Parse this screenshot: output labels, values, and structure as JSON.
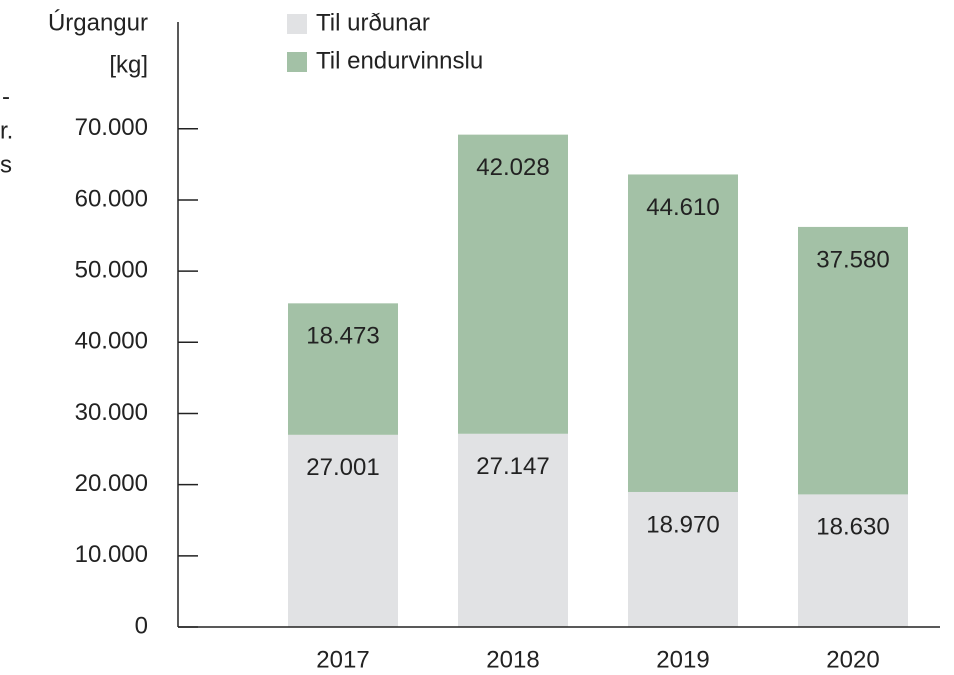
{
  "chart_data": {
    "type": "stacked_bar",
    "ylabel": [
      "Úrgangur",
      "[kg]"
    ],
    "annotations": [
      "-",
      "r.",
      "s"
    ],
    "categories": [
      "2017",
      "2018",
      "2019",
      "2020"
    ],
    "series": [
      {
        "name": "Til urðunar",
        "color": "#e1e2e4",
        "values": [
          27001,
          27147,
          18970,
          18630
        ],
        "value_labels": [
          "27.001",
          "27.147",
          "18.970",
          "18.630"
        ]
      },
      {
        "name": "Til endurvinnslu",
        "color": "#a3c1a6",
        "values": [
          18473,
          42028,
          44610,
          37580
        ],
        "value_labels": [
          "18.473",
          "42.028",
          "44.610",
          "37.580"
        ]
      }
    ],
    "ylim": [
      0,
      85000
    ],
    "yticks": [
      0,
      {
        "value": 10000,
        "label": "10.000"
      },
      {
        "value": 20000,
        "label": "20.000"
      },
      {
        "value": 30000,
        "label": "30.000"
      },
      {
        "value": 40000,
        "label": "40.000"
      },
      {
        "value": 50000,
        "label": "50.000"
      },
      {
        "value": 60000,
        "label": "60.000"
      },
      {
        "value": 70000,
        "label": "70.000"
      }
    ]
  }
}
